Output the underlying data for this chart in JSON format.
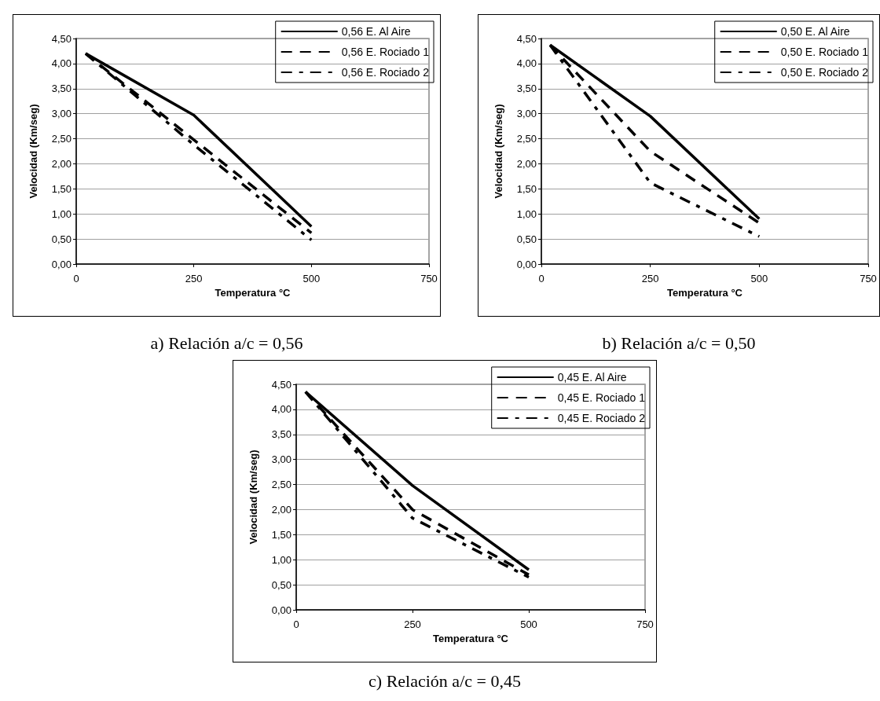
{
  "chart_data": [
    {
      "type": "line",
      "xlabel": "Temperatura °C",
      "ylabel": "Velocidad (Km/seg)",
      "annotations": [
        "a) Relación a/c = 0,56"
      ],
      "x": [
        20,
        250,
        500
      ],
      "xlim": [
        0,
        750
      ],
      "xticks": [
        0,
        250,
        500,
        750
      ],
      "ylim": [
        0,
        4.5
      ],
      "yticks": [
        {
          "value": 0,
          "label": "0,00"
        },
        {
          "value": 0.5,
          "label": "0,50"
        },
        {
          "value": 1,
          "label": "1,00"
        },
        {
          "value": 1.5,
          "label": "1,50"
        },
        {
          "value": 2,
          "label": "2,00"
        },
        {
          "value": 2.5,
          "label": "2,50"
        },
        {
          "value": 3,
          "label": "3,00"
        },
        {
          "value": 3.5,
          "label": "3,50"
        },
        {
          "value": 4,
          "label": "4,00"
        },
        {
          "value": 4.5,
          "label": "4,50"
        }
      ],
      "grid": "y",
      "legend": "top right",
      "marker": "none",
      "series": [
        {
          "name": "0,56 E. Al Aire",
          "color": "#000000",
          "line_style": "solid",
          "values": [
            4.2,
            2.97,
            0.75
          ]
        },
        {
          "name": "0,56 E. Rociado 1",
          "color": "#000000",
          "line_style": "dashed",
          "values": [
            4.2,
            2.48,
            0.62
          ]
        },
        {
          "name": "0,56 E. Rociado 2",
          "color": "#000000",
          "line_style": "dashdot",
          "values": [
            4.2,
            2.38,
            0.48
          ]
        }
      ]
    },
    {
      "type": "line",
      "xlabel": "Temperatura °C",
      "ylabel": "Velocidad (Km/seg)",
      "annotations": [
        "b) Relación a/c = 0,50"
      ],
      "x": [
        20,
        250,
        500
      ],
      "xlim": [
        0,
        750
      ],
      "xticks": [
        0,
        250,
        500,
        750
      ],
      "ylim": [
        0,
        4.5
      ],
      "yticks": [
        {
          "value": 0,
          "label": "0,00"
        },
        {
          "value": 0.5,
          "label": "0,50"
        },
        {
          "value": 1,
          "label": "1,00"
        },
        {
          "value": 1.5,
          "label": "1,50"
        },
        {
          "value": 2,
          "label": "2,00"
        },
        {
          "value": 2.5,
          "label": "2,50"
        },
        {
          "value": 3,
          "label": "3,00"
        },
        {
          "value": 3.5,
          "label": "3,50"
        },
        {
          "value": 4,
          "label": "4,00"
        },
        {
          "value": 4.5,
          "label": "4,50"
        }
      ],
      "grid": "y",
      "legend": "top right",
      "marker": "none",
      "series": [
        {
          "name": "0,50 E. Al Aire",
          "color": "#000000",
          "line_style": "solid",
          "values": [
            4.37,
            2.95,
            0.9
          ]
        },
        {
          "name": "0,50 E. Rociado 1",
          "color": "#000000",
          "line_style": "dashed",
          "values": [
            4.37,
            2.25,
            0.82
          ]
        },
        {
          "name": "0,50 E. Rociado 2",
          "color": "#000000",
          "line_style": "dashdot",
          "values": [
            4.37,
            1.62,
            0.55
          ]
        }
      ]
    },
    {
      "type": "line",
      "xlabel": "Temperatura °C",
      "ylabel": "Velocidad (Km/seg)",
      "annotations": [
        "c) Relación a/c = 0,45"
      ],
      "x": [
        20,
        250,
        500
      ],
      "xlim": [
        0,
        750
      ],
      "xticks": [
        0,
        250,
        500,
        750
      ],
      "ylim": [
        0,
        4.5
      ],
      "yticks": [
        {
          "value": 0,
          "label": "0,00"
        },
        {
          "value": 0.5,
          "label": "0,50"
        },
        {
          "value": 1,
          "label": "1,00"
        },
        {
          "value": 1.5,
          "label": "1,50"
        },
        {
          "value": 2,
          "label": "2,00"
        },
        {
          "value": 2.5,
          "label": "2,50"
        },
        {
          "value": 3,
          "label": "3,00"
        },
        {
          "value": 3.5,
          "label": "3,50"
        },
        {
          "value": 4,
          "label": "4,00"
        },
        {
          "value": 4.5,
          "label": "4,50"
        }
      ],
      "grid": "y",
      "legend": "top right",
      "marker": "none",
      "series": [
        {
          "name": "0,45 E. Al Aire",
          "color": "#000000",
          "line_style": "solid",
          "values": [
            4.35,
            2.48,
            0.8
          ]
        },
        {
          "name": "0,45 E. Rociado 1",
          "color": "#000000",
          "line_style": "dashed",
          "values": [
            4.35,
            2.0,
            0.7
          ]
        },
        {
          "name": "0,45 E. Rociado 2",
          "color": "#000000",
          "line_style": "dashdot",
          "values": [
            4.35,
            1.83,
            0.65
          ]
        }
      ]
    }
  ]
}
